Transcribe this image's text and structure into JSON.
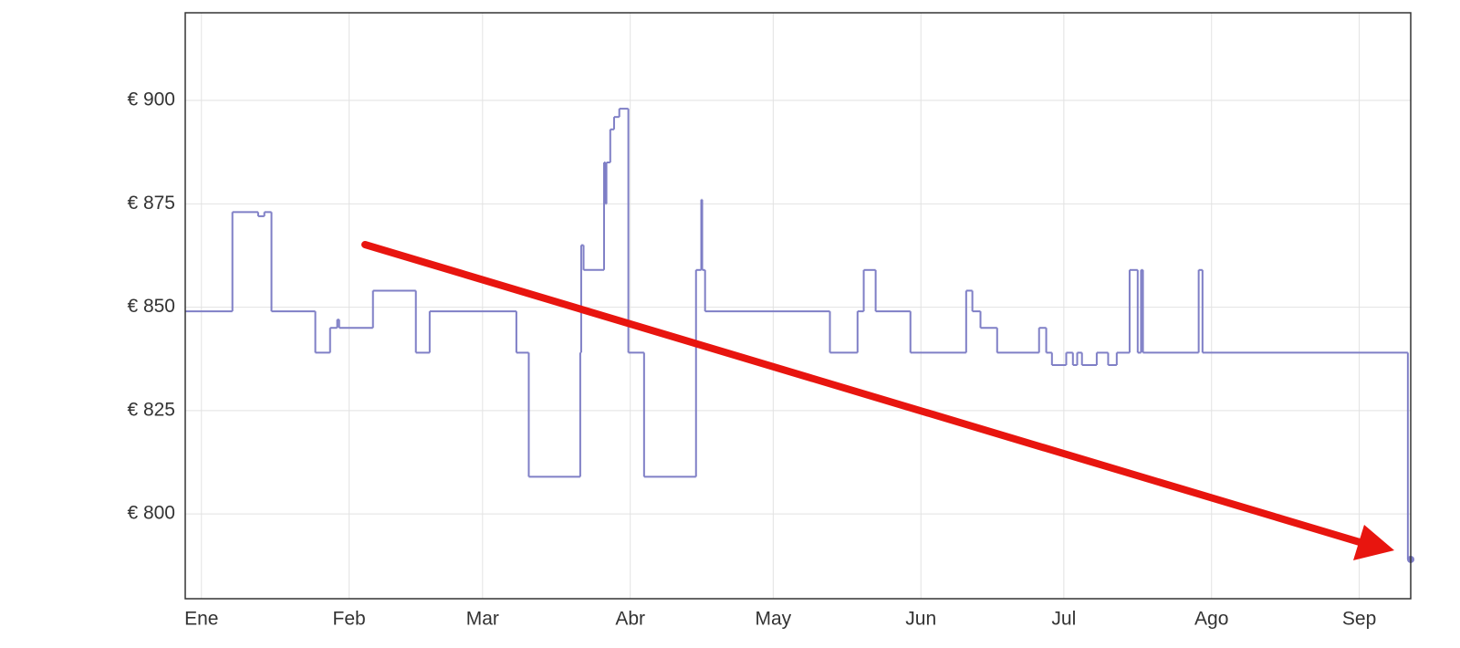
{
  "chart_data": {
    "type": "line",
    "step": "after",
    "grid": true,
    "x": [
      -3.4,
      6.5,
      11.9,
      13.2,
      14.7,
      23.9,
      27.0,
      28.5,
      28.9,
      36.0,
      45.0,
      47.9,
      66.1,
      68.7,
      79.5,
      79.7,
      80.2,
      84.5,
      84.8,
      85.0,
      85.8,
      86.6,
      87.7,
      89.6,
      92.9,
      103.8,
      104.9,
      105.1,
      105.7,
      131.9,
      137.7,
      139.0,
      141.5,
      148.8,
      160.5,
      161.8,
      163.5,
      167.0,
      175.8,
      177.3,
      178.5,
      181.5,
      182.9,
      183.8,
      184.8,
      187.9,
      190.3,
      192.1,
      194.8,
      196.5,
      197.2,
      197.6,
      209.3,
      210.1,
      253.2,
      253.8
    ],
    "values": [
      849,
      873,
      872,
      873,
      849,
      839,
      845,
      847,
      845,
      854,
      839,
      849,
      839,
      809,
      839,
      865,
      859,
      885,
      875,
      885,
      893,
      896,
      898,
      839,
      809,
      859,
      876,
      859,
      849,
      839,
      849,
      859,
      849,
      839,
      854,
      849,
      845,
      839,
      845,
      839,
      836,
      839,
      836,
      839,
      836,
      839,
      836,
      839,
      859,
      839,
      859,
      839,
      859,
      839,
      789,
      789
    ],
    "color": "#7f7fc6",
    "xlim": [
      -3.4,
      253.8
    ],
    "xticks": [
      {
        "value": 0,
        "label": "Ene"
      },
      {
        "value": 31,
        "label": "Feb"
      },
      {
        "value": 59,
        "label": "Mar"
      },
      {
        "value": 90,
        "label": "Abr"
      },
      {
        "value": 120,
        "label": "May"
      },
      {
        "value": 151,
        "label": "Jun"
      },
      {
        "value": 181,
        "label": "Jul"
      },
      {
        "value": 212,
        "label": "Ago"
      },
      {
        "value": 243,
        "label": "Sep"
      }
    ],
    "ylim": [
      779.5,
      921.2
    ],
    "yticks": [
      {
        "value": 800,
        "label": "€ 800"
      },
      {
        "value": 825,
        "label": "€ 825"
      },
      {
        "value": 850,
        "label": "€ 850"
      },
      {
        "value": 875,
        "label": "€ 875"
      },
      {
        "value": 900,
        "label": "€ 900"
      }
    ]
  }
}
